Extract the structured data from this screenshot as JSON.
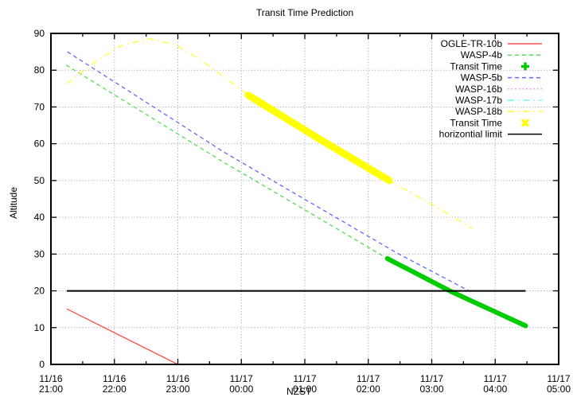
{
  "chart_data": {
    "type": "line",
    "title": "Transit Time Prediction",
    "xlabel": "NZST",
    "ylabel": "Altitude",
    "x_axis": {
      "unit": "clock time (NZST), hours measured from 11/16 21:00",
      "range_hours": [
        0,
        8
      ],
      "major_ticks": [
        {
          "date": "11/16",
          "time": "21:00"
        },
        {
          "date": "11/16",
          "time": "22:00"
        },
        {
          "date": "11/16",
          "time": "23:00"
        },
        {
          "date": "11/17",
          "time": "00:00"
        },
        {
          "date": "11/17",
          "time": "01:00"
        },
        {
          "date": "11/17",
          "time": "02:00"
        },
        {
          "date": "11/17",
          "time": "03:00"
        },
        {
          "date": "11/17",
          "time": "04:00"
        },
        {
          "date": "11/17",
          "time": "05:00"
        }
      ],
      "minor_tick_step_hours": 0.5
    },
    "y_axis": {
      "range": [
        0,
        90
      ],
      "major_step": 10
    },
    "grid": {
      "color": "#9a9a9a",
      "x_lines_hours": [
        1,
        2,
        3,
        4,
        5,
        6,
        7
      ],
      "y_lines": [
        10,
        20,
        30,
        40,
        50,
        60,
        70,
        80
      ]
    },
    "legend_position": "top-right-inside",
    "series": [
      {
        "name": "OGLE-TR-10b",
        "color": "#ff5050",
        "style": "solid",
        "line_width": 1.3,
        "points_h_alt": [
          [
            0.25,
            15.1
          ],
          [
            2.0,
            0.0
          ]
        ]
      },
      {
        "name": "WASP-4b",
        "color": "#55dd55",
        "style": "dashed",
        "line_width": 1.3,
        "points_h_alt": [
          [
            0.24,
            81.4
          ],
          [
            1.5,
            68.0
          ],
          [
            2.7,
            55.2
          ],
          [
            3.61,
            46.0
          ],
          [
            5.3,
            28.8
          ],
          [
            6.33,
            19.6
          ],
          [
            7.48,
            10.5
          ]
        ]
      },
      {
        "name": "Transit Time",
        "marker": "plus",
        "color": "#00cc00",
        "style": "solid",
        "line_width": 6,
        "points_h_alt": [
          [
            5.3,
            28.8
          ],
          [
            6.33,
            19.6
          ],
          [
            7.48,
            10.5
          ]
        ]
      },
      {
        "name": "WASP-5b",
        "color": "#6666ff",
        "style": "dashed",
        "line_width": 1.3,
        "points_h_alt": [
          [
            0.26,
            85.0
          ],
          [
            1.5,
            71.3
          ],
          [
            2.7,
            58.0
          ],
          [
            3.95,
            45.4
          ],
          [
            5.45,
            30.3
          ],
          [
            6.61,
            19.8
          ]
        ]
      },
      {
        "name": "WASP-16b",
        "color": "#f08cf0",
        "style": "dotted",
        "line_width": 1.3,
        "points_h_alt": []
      },
      {
        "name": "WASP-17b",
        "color": "#66ffee",
        "style": "dashdot",
        "line_width": 1.3,
        "points_h_alt": []
      },
      {
        "name": "WASP-18b",
        "color": "#ffff33",
        "style": "dashdot",
        "line_width": 1.3,
        "points_h_alt": [
          [
            0.25,
            76.4
          ],
          [
            0.7,
            82.3
          ],
          [
            1.1,
            86.6
          ],
          [
            1.54,
            88.6
          ],
          [
            1.95,
            87.0
          ],
          [
            2.3,
            83.5
          ],
          [
            2.7,
            78.5
          ],
          [
            3.11,
            73.2
          ],
          [
            4.2,
            61.6
          ],
          [
            5.33,
            50.0
          ],
          [
            6.0,
            43.5
          ],
          [
            6.64,
            37.0
          ]
        ]
      },
      {
        "name": "Transit Time",
        "marker": "x",
        "color": "#ffff00",
        "style": "solid",
        "line_width": 9,
        "points_h_alt": [
          [
            3.11,
            73.2
          ],
          [
            4.2,
            61.6
          ],
          [
            5.33,
            50.0
          ]
        ]
      },
      {
        "name": "horizontial limit",
        "color": "#000000",
        "style": "solid",
        "line_width": 2,
        "points_h_alt": [
          [
            0.25,
            20.0
          ],
          [
            7.48,
            20.0
          ]
        ]
      }
    ]
  }
}
